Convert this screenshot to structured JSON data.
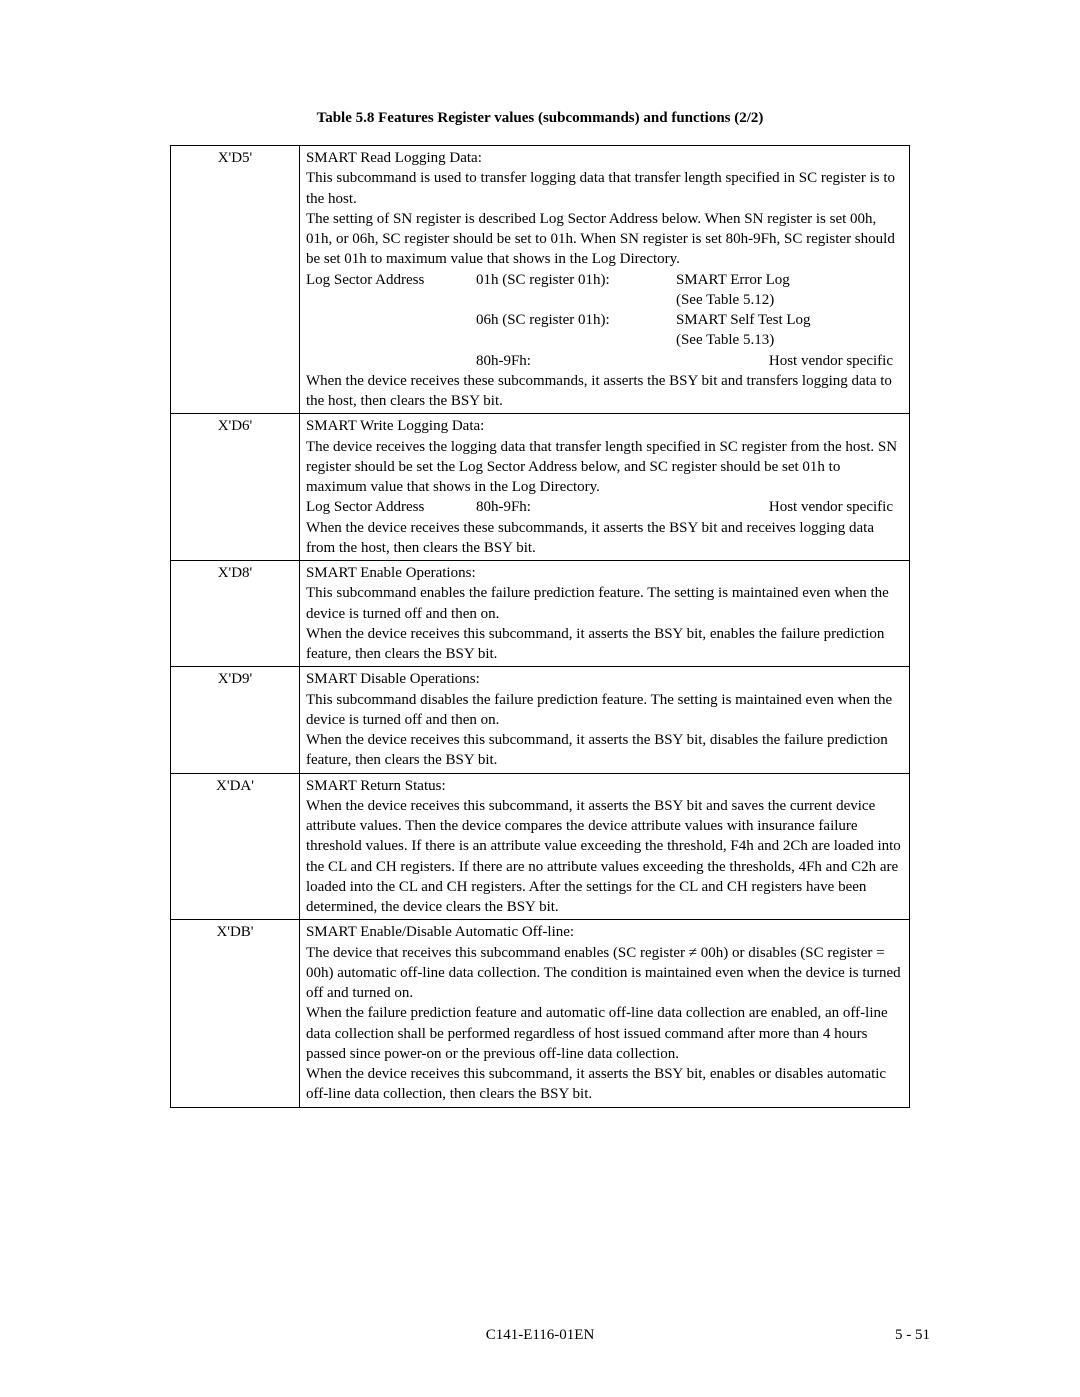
{
  "title": "Table 5.8  Features Register values (subcommands) and functions (2/2)",
  "rows": {
    "d5": {
      "code": "X'D5'",
      "l1": "SMART Read Logging Data:",
      "l2": "This subcommand is used to transfer logging data that transfer length specified in SC register is to the host.",
      "l3": "The setting of SN register is described Log Sector Address below.  When SN register is set 00h, 01h, or 06h, SC register should be set to 01h.  When SN register is set 80h-9Fh, SC register should be set 01h to maximum value that shows in the Log Directory.",
      "log_label": "Log Sector Address",
      "r1c2": "01h (SC register 01h):",
      "r1c3a": "SMART Error Log",
      "r1c3b": "(See Table 5.12)",
      "r2c2": "06h (SC register 01h):",
      "r2c3a": "SMART Self Test Log",
      "r2c3b": "(See Table 5.13)",
      "r3c2": "80h-9Fh:",
      "r3c3": "Host vendor specific",
      "l4": "When the device receives these subcommands, it asserts the BSY bit and transfers logging data to the host, then clears the BSY bit."
    },
    "d6": {
      "code": "X'D6'",
      "l1": "SMART Write Logging Data:",
      "l2": "The device receives the logging data that transfer length specified in SC register from the host.  SN register should be set the Log Sector Address below, and SC register should be set 01h to maximum value that shows in the Log Directory.",
      "log_label": "Log Sector Address",
      "r1c2": "80h-9Fh:",
      "r1c3": "Host vendor specific",
      "l3": "When the device receives these subcommands, it asserts the BSY bit and receives logging data from the host, then clears the BSY bit."
    },
    "d8": {
      "code": "X'D8'",
      "l1": "SMART Enable Operations:",
      "l2": "This subcommand enables the failure prediction feature.  The setting is maintained even when the device is turned off and then on.",
      "l3": "When the device receives this subcommand, it asserts the BSY bit, enables the failure prediction feature, then clears the BSY bit."
    },
    "d9": {
      "code": "X'D9'",
      "l1": "SMART Disable Operations:",
      "l2": "This subcommand disables the failure prediction feature.  The setting is maintained even when the device is turned off and then on.",
      "l3": "When the device receives this subcommand, it asserts the BSY bit, disables the failure prediction feature, then clears the BSY bit."
    },
    "da": {
      "code": "X'DA'",
      "l1": "SMART Return Status:",
      "l2": "When the device receives this subcommand, it asserts the BSY bit and saves the current device attribute values.  Then the device compares the device attribute values with insurance failure threshold values.  If there is an attribute value exceeding the threshold, F4h and 2Ch are loaded into the CL and CH registers.  If there are no attribute values exceeding the thresholds, 4Fh and C2h are loaded into the CL and CH registers.  After the settings for the CL and CH registers have been determined, the device clears the BSY bit."
    },
    "db": {
      "code": "X'DB'",
      "l1": "SMART Enable/Disable Automatic Off-line:",
      "l2": "The device that receives this subcommand enables (SC register ≠ 00h) or disables (SC register = 00h) automatic off-line data collection.  The condition is maintained even when the device is turned off and turned on.",
      "l3": "When the failure prediction feature and automatic off-line data collection are enabled, an off-line data collection shall be performed regardless of host issued command after more than 4 hours passed since power-on or the previous off-line data collection.",
      "l4": "When the device receives this subcommand, it asserts the BSY bit, enables or disables automatic off-line data collection, then clears the BSY bit."
    }
  },
  "footer": {
    "center": "C141-E116-01EN",
    "right": "5 - 51"
  }
}
